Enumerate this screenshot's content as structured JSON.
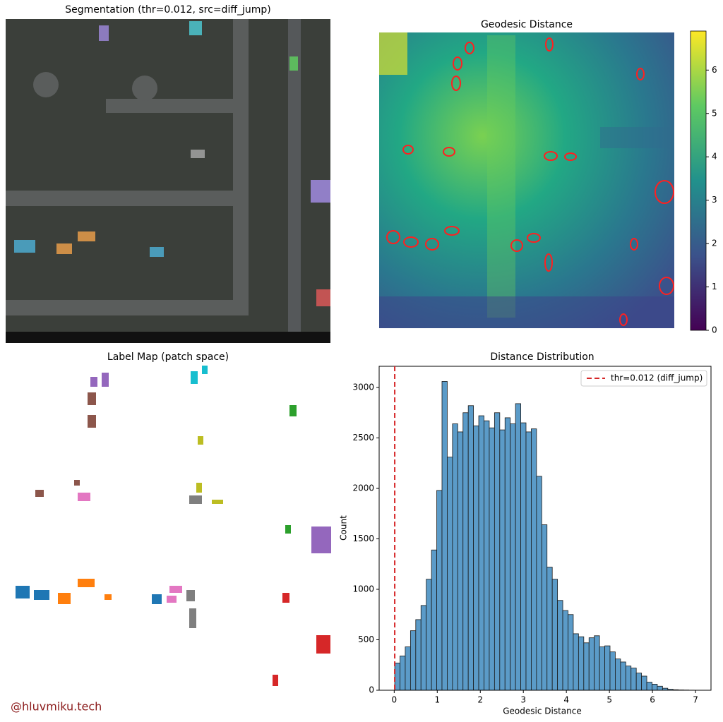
{
  "chart_data": [
    {
      "type": "image",
      "title": "Segmentation (thr=0.012, src=diff_jump)"
    },
    {
      "type": "heatmap",
      "title": "Geodesic Distance",
      "colorbar": {
        "ylim": [
          0,
          6.9
        ],
        "yticks": [
          0,
          1,
          2,
          3,
          4,
          5,
          6
        ]
      }
    },
    {
      "type": "image",
      "title": "Label Map (patch space)"
    },
    {
      "type": "histogram",
      "title": "Distance Distribution",
      "xlabel": "Geodesic Distance",
      "ylabel": "Count",
      "bins": [
        0.012,
        0.134,
        0.256,
        0.378,
        0.5,
        0.622,
        0.744,
        0.866,
        0.988,
        1.11,
        1.232,
        1.354,
        1.476,
        1.598,
        1.72,
        1.842,
        1.964,
        2.086,
        2.208,
        2.33,
        2.452,
        2.574,
        2.696,
        2.818,
        2.94,
        3.062,
        3.184,
        3.306,
        3.428,
        3.55,
        3.672,
        3.794,
        3.916,
        4.038,
        4.16,
        4.282,
        4.404,
        4.526,
        4.648,
        4.77,
        4.892,
        5.014,
        5.136,
        5.258,
        5.38,
        5.502,
        5.624,
        5.746,
        5.868,
        5.99,
        6.112,
        6.234,
        6.356,
        6.478,
        6.6,
        6.722,
        6.844,
        6.966
      ],
      "counts": [
        270,
        340,
        430,
        590,
        700,
        840,
        1100,
        1390,
        1980,
        3060,
        2310,
        2640,
        2560,
        2750,
        2820,
        2620,
        2720,
        2670,
        2600,
        2750,
        2580,
        2700,
        2640,
        2840,
        2650,
        2560,
        2590,
        2120,
        1640,
        1220,
        1100,
        890,
        790,
        750,
        560,
        530,
        470,
        520,
        540,
        430,
        440,
        380,
        310,
        280,
        240,
        220,
        170,
        140,
        80,
        60,
        40,
        20,
        10,
        5,
        3,
        2,
        1
      ],
      "color": "#5b9bc8",
      "xlim": [
        -0.35,
        7.36
      ],
      "ylim": [
        0,
        3210
      ],
      "xticks": [
        0,
        1,
        2,
        3,
        4,
        5,
        6,
        7
      ],
      "yticks": [
        0,
        500,
        1000,
        1500,
        2000,
        2500,
        3000
      ],
      "threshold": {
        "value": 0.012,
        "label": "thr=0.012 (diff_jump)",
        "color": "#d62728"
      },
      "legend": "upper right"
    }
  ],
  "watermark": "@hluvmiku.tech"
}
